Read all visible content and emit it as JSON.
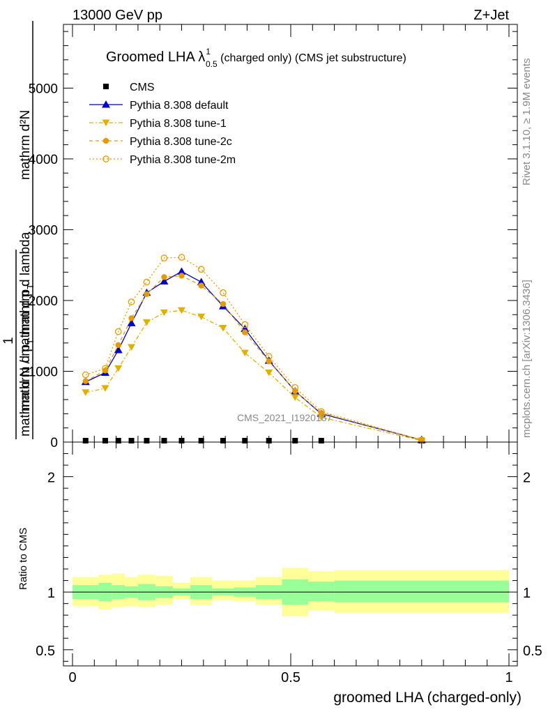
{
  "header": {
    "left": "13000 GeV pp",
    "right": "Z+Jet"
  },
  "side": {
    "top": "Rivet 3.1.10, ≥ 1.9M events",
    "bottom": "mcplots.cern.ch [arXiv:1306.3436]"
  },
  "chart_data": [
    {
      "type": "line",
      "title_main": "Groomed LHA ",
      "title_lambda": "λ",
      "title_sup": "1",
      "title_sub": "0.5",
      "title_rest": " (charged only) (CMS jet substructure)",
      "ylabel_num": "mathrm d²N",
      "ylabel_den": "mathrm d p",
      "ylabel_den2": "T",
      "ylabel_den3": " mathrm d lambda",
      "ylabel_one": "1",
      "ylabel_bottom": "mathrm d N / mathrm d p",
      "ylabel_bottom2": "T",
      "watermark": "CMS_2021_I1920187",
      "xlim": [
        -0.02,
        1.0
      ],
      "ylim": [
        0,
        5900
      ],
      "yticks": [
        0,
        1000,
        2000,
        3000,
        4000,
        5000
      ],
      "ytick_labels": [
        "0",
        "1000",
        "2000",
        "3000",
        "4000",
        "5000"
      ],
      "legend_position": "top-left",
      "x": [
        0.03,
        0.075,
        0.105,
        0.135,
        0.17,
        0.21,
        0.25,
        0.295,
        0.345,
        0.395,
        0.45,
        0.51,
        0.57,
        0.8
      ],
      "series": [
        {
          "name": "CMS",
          "color": "#000000",
          "marker": "square",
          "values": [
            0,
            0,
            0,
            0,
            0,
            0,
            0,
            0,
            0,
            0,
            0,
            0,
            0,
            0
          ]
        },
        {
          "name": "Pythia 8.308 default",
          "color": "#0000cc",
          "marker": "triangle-up",
          "dash": "",
          "values": [
            850,
            980,
            1300,
            1680,
            2110,
            2270,
            2410,
            2260,
            1920,
            1600,
            1150,
            720,
            400,
            30
          ]
        },
        {
          "name": "Pythia 8.308 tune-1",
          "color": "#e0b000",
          "marker": "triangle-down",
          "dash": "6,3,2,3",
          "values": [
            700,
            760,
            1040,
            1340,
            1690,
            1830,
            1860,
            1770,
            1610,
            1260,
            980,
            630,
            350,
            20
          ]
        },
        {
          "name": "Pythia 8.308 tune-2c",
          "color": "#e39b00",
          "marker": "circle",
          "dash": "5,4",
          "values": [
            860,
            1010,
            1370,
            1750,
            2090,
            2330,
            2350,
            2210,
            1950,
            1550,
            1140,
            720,
            410,
            30
          ]
        },
        {
          "name": "Pythia 8.308 tune-2m",
          "color": "#e39b00",
          "marker": "open-circle",
          "dash": "2,3",
          "values": [
            950,
            1040,
            1560,
            1980,
            2260,
            2600,
            2610,
            2440,
            2110,
            1660,
            1210,
            770,
            430,
            30
          ]
        }
      ]
    },
    {
      "type": "area",
      "ylabel": "Ratio to CMS",
      "xlabel": "groomed LHA (charged-only)",
      "xlim": [
        -0.02,
        1.0
      ],
      "ylim": [
        0.36,
        2.3
      ],
      "xticks": [
        0,
        0.5,
        1
      ],
      "xtick_labels": [
        "0",
        "0.5",
        "1"
      ],
      "yticks": [
        0.5,
        1,
        2
      ],
      "ytick_labels": [
        "0.5",
        "1",
        "2"
      ],
      "bin_edges": [
        0,
        0.06,
        0.09,
        0.12,
        0.15,
        0.19,
        0.23,
        0.27,
        0.32,
        0.37,
        0.42,
        0.48,
        0.54,
        0.6,
        1.0
      ],
      "band_green": [
        [
          0.94,
          1.06
        ],
        [
          0.92,
          1.08
        ],
        [
          0.94,
          1.06
        ],
        [
          0.95,
          1.05
        ],
        [
          0.93,
          1.07
        ],
        [
          0.95,
          1.05
        ],
        [
          0.97,
          1.03
        ],
        [
          0.94,
          1.06
        ],
        [
          0.97,
          1.03
        ],
        [
          0.96,
          1.04
        ],
        [
          0.94,
          1.06
        ],
        [
          0.89,
          1.11
        ],
        [
          0.92,
          1.09
        ],
        [
          0.91,
          1.1
        ]
      ],
      "band_yellow": [
        [
          0.88,
          1.13
        ],
        [
          0.85,
          1.15
        ],
        [
          0.87,
          1.16
        ],
        [
          0.88,
          1.13
        ],
        [
          0.87,
          1.15
        ],
        [
          0.89,
          1.14
        ],
        [
          0.94,
          1.08
        ],
        [
          0.89,
          1.13
        ],
        [
          0.93,
          1.1
        ],
        [
          0.92,
          1.1
        ],
        [
          0.89,
          1.13
        ],
        [
          0.79,
          1.21
        ],
        [
          0.84,
          1.18
        ],
        [
          0.82,
          1.19
        ]
      ]
    }
  ]
}
